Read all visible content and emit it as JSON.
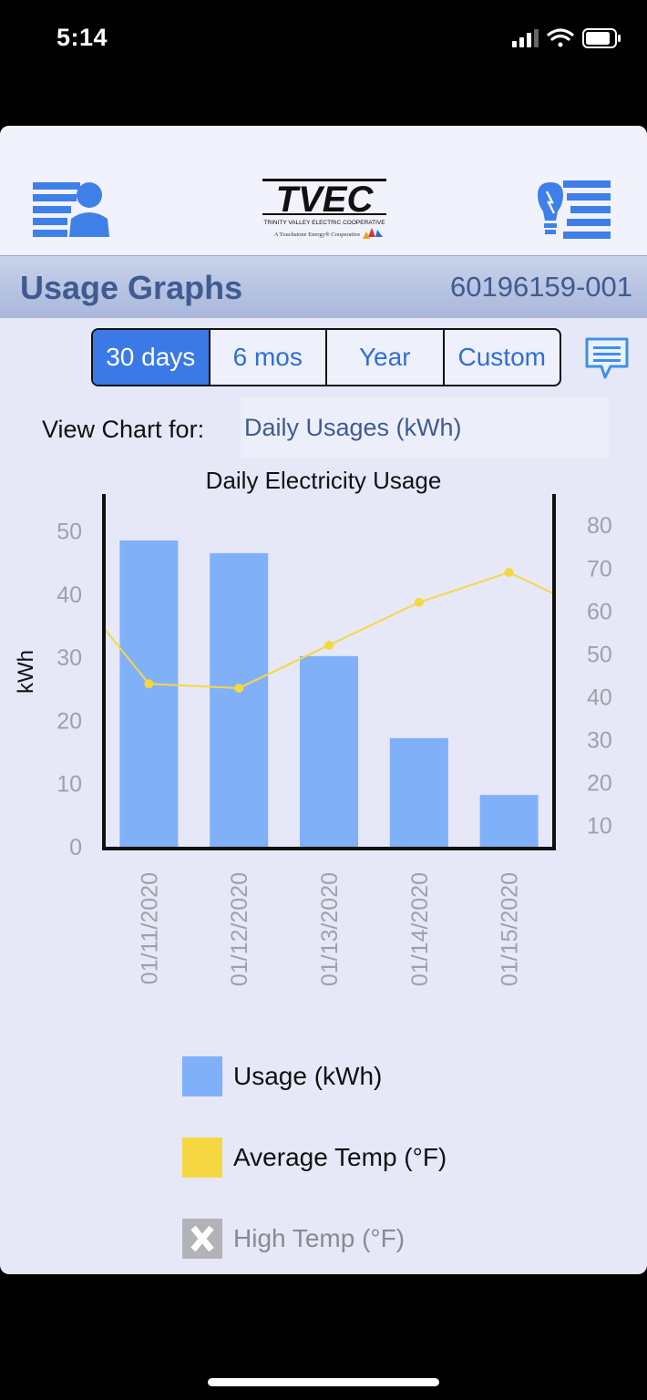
{
  "status_bar": {
    "time": "5:14"
  },
  "header": {
    "logo_text": "TVEC",
    "logo_subtitle": "TRINITY VALLEY ELECTRIC COOPERATIVE",
    "logo_tagline": "A Touchstone Energy® Cooperative"
  },
  "title_bar": {
    "title": "Usage Graphs",
    "account_number": "60196159-001"
  },
  "period_tabs": [
    {
      "label": "30 days",
      "selected": true
    },
    {
      "label": "6 mos",
      "selected": false
    },
    {
      "label": "Year",
      "selected": false
    },
    {
      "label": "Custom",
      "selected": false
    }
  ],
  "view_chart": {
    "label": "View Chart for:",
    "value": "Daily Usages (kWh)"
  },
  "chart_data": {
    "type": "bar",
    "title": "Daily Electricity Usage",
    "ylabel": "kWh",
    "categories": [
      "01/11/2020",
      "01/12/2020",
      "01/13/2020",
      "01/14/2020",
      "01/15/2020"
    ],
    "ylim": [
      0,
      55
    ],
    "yticks": [
      0,
      10,
      20,
      30,
      40,
      50
    ],
    "y2ticks": [
      10,
      20,
      30,
      40,
      50,
      60,
      70,
      80
    ],
    "y2lim": [
      5,
      86
    ],
    "series": [
      {
        "name": "Usage (kWh)",
        "type": "bar",
        "axis": "left",
        "color": "#80b0f8",
        "values": [
          48.5,
          46.5,
          30.2,
          17.2,
          8.2
        ]
      },
      {
        "name": "Average Temp (°F)",
        "type": "line",
        "axis": "right",
        "color": "#f5d742",
        "values": [
          43,
          42,
          52,
          62,
          69
        ],
        "edge_left": 56,
        "edge_right": 64
      }
    ],
    "legend_position": "bottom",
    "grid": false
  },
  "legend": [
    {
      "label": "Usage (kWh)",
      "color": "#80b0f8",
      "enabled": true
    },
    {
      "label": "Average Temp (°F)",
      "color": "#f5d742",
      "enabled": true
    },
    {
      "label": "High Temp (°F)",
      "color": "#b3b3b7",
      "enabled": false
    }
  ]
}
